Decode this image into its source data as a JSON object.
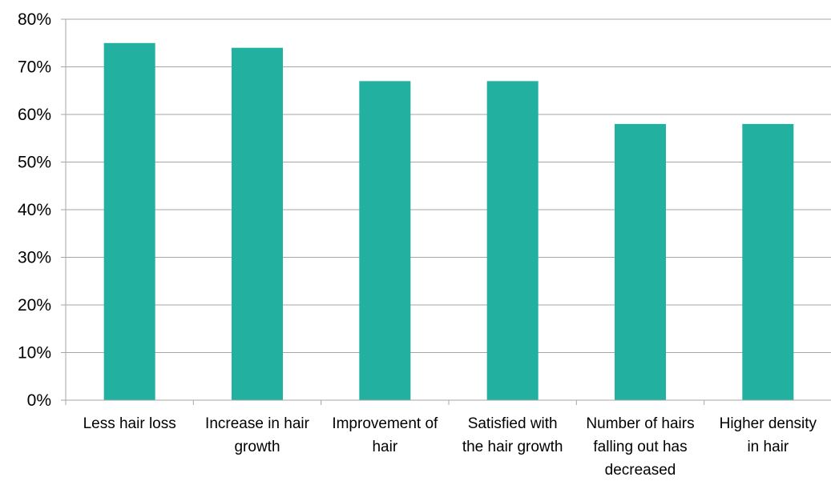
{
  "chart_data": {
    "type": "bar",
    "title": "",
    "xlabel": "",
    "ylabel": "",
    "categories": [
      [
        "Less hair loss"
      ],
      [
        "Increase in hair",
        "growth"
      ],
      [
        "Improvement of",
        "hair"
      ],
      [
        "Satisfied with",
        "the hair growth"
      ],
      [
        "Number of hairs",
        "falling out has",
        "decreased"
      ],
      [
        "Higher density",
        "in hair"
      ]
    ],
    "values": [
      75,
      74,
      67,
      67,
      58,
      58
    ],
    "value_format": "percent",
    "ylim": [
      0,
      80
    ],
    "yticks": [
      "0%",
      "10%",
      "20%",
      "30%",
      "40%",
      "50%",
      "60%",
      "70%",
      "80%"
    ],
    "grid": true,
    "legend": "none",
    "bar_color": "#22B1A0",
    "grid_color": "#A6A6A6",
    "axis_color": "#A6A6A6"
  }
}
